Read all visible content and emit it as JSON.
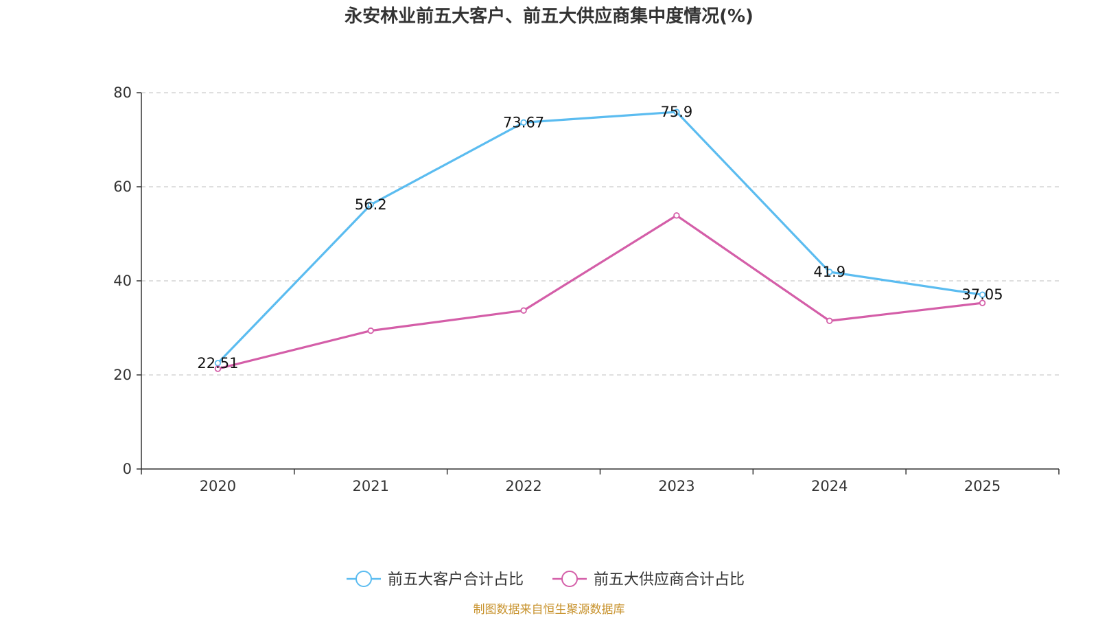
{
  "chart_data": {
    "type": "line",
    "title": "永安林业前五大客户、前五大供应商集中度情况(%)",
    "categories": [
      "2020",
      "2021",
      "2022",
      "2023",
      "2024",
      "2025"
    ],
    "ylim": [
      0,
      80
    ],
    "yticks": [
      "0",
      "20",
      "40",
      "60",
      "80"
    ],
    "grid": true,
    "legend_position": "bottom-center",
    "series": [
      {
        "name": "前五大客户合计占比",
        "color": "#5bbcf0",
        "values": [
          22.51,
          56.2,
          73.67,
          75.9,
          41.9,
          37.05
        ],
        "labels": [
          "22.51",
          "56.2",
          "73.67",
          "75.9",
          "41.9",
          "37.05"
        ]
      },
      {
        "name": "前五大供应商合计占比",
        "color": "#d45ea8",
        "values": [
          21.3,
          29.4,
          33.7,
          53.9,
          31.5,
          35.3
        ]
      }
    ]
  },
  "source_text": "制图数据来自恒生聚源数据库",
  "source_color": "#c8932e"
}
